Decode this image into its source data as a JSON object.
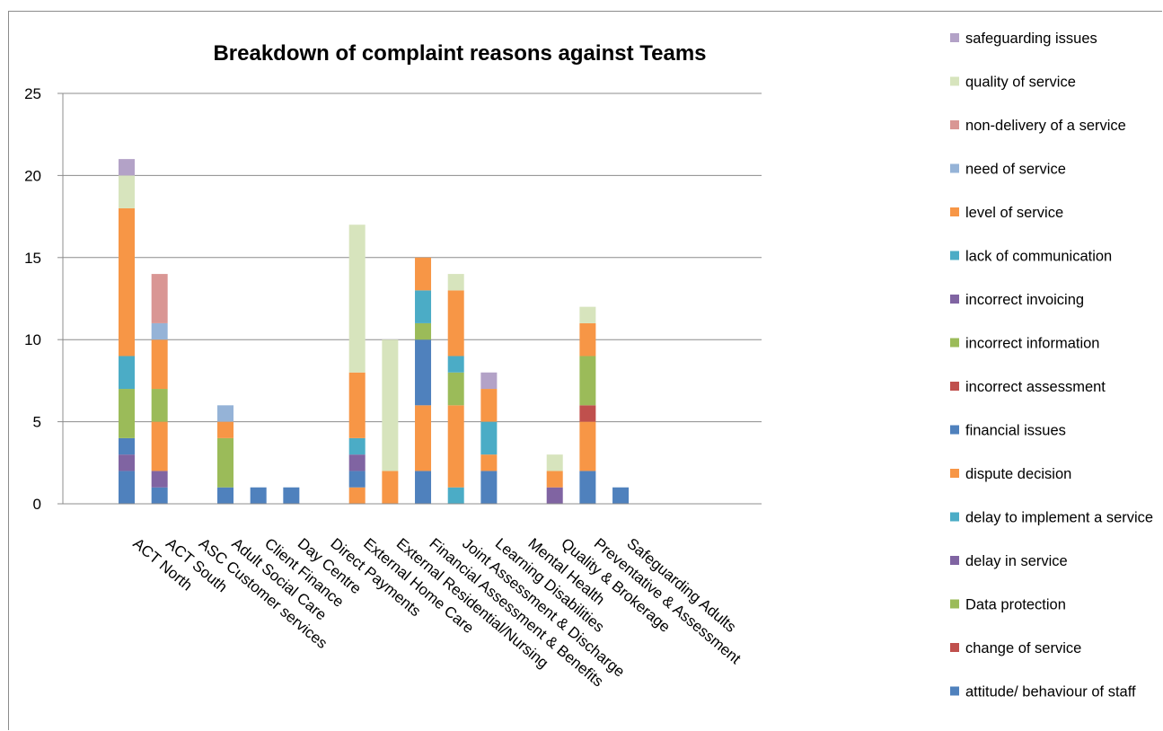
{
  "chart_data": {
    "type": "bar",
    "stacked": true,
    "title": "Breakdown of complaint reasons against Teams",
    "xlabel": "",
    "ylabel": "",
    "ylim": [
      0,
      25
    ],
    "yticks": [
      0,
      5,
      10,
      15,
      20,
      25
    ],
    "grid": true,
    "legend_position": "right",
    "categories": [
      "ACT North",
      "ACT South",
      "ASC Customer services",
      "Adult Social Care",
      "Client Finance",
      "Day Centre",
      "Direct Payments",
      "External Home Care",
      "External Residential/Nursing",
      "Financial Assessment & Benefits",
      "Joint Assessment & Discharge",
      "Learning Disabilities",
      "Mental Health",
      "Quality & Brokerage",
      "Preventative & Assessment",
      "Safeguarding Adults"
    ],
    "series": [
      {
        "name": "attitude/ behaviour of staff",
        "color": "#4f81bd",
        "values": [
          2,
          1,
          0,
          1,
          0,
          1,
          0,
          0,
          0,
          2,
          0,
          2,
          0,
          0,
          2,
          1
        ]
      },
      {
        "name": "change of service",
        "color": "#c0504d",
        "values": [
          0,
          0,
          0,
          0,
          0,
          0,
          0,
          0,
          0,
          0,
          0,
          0,
          0,
          0,
          0,
          0
        ]
      },
      {
        "name": "Data protection",
        "color": "#9bbb59",
        "values": [
          0,
          0,
          0,
          0,
          0,
          0,
          0,
          0,
          0,
          0,
          0,
          0,
          0,
          0,
          0,
          0
        ]
      },
      {
        "name": "delay in service",
        "color": "#8064a2",
        "values": [
          1,
          1,
          0,
          0,
          0,
          0,
          0,
          0,
          0,
          0,
          0,
          0,
          0,
          1,
          0,
          0
        ]
      },
      {
        "name": "delay to implement a service",
        "color": "#4bacc6",
        "values": [
          0,
          0,
          0,
          0,
          0,
          0,
          0,
          0,
          0,
          0,
          1,
          0,
          0,
          0,
          0,
          0
        ]
      },
      {
        "name": "dispute decision",
        "color": "#f79646",
        "values": [
          0,
          3,
          0,
          0,
          0,
          0,
          0,
          1,
          0,
          4,
          5,
          1,
          0,
          0,
          3,
          0
        ]
      },
      {
        "name": "financial issues",
        "color": "#4f81bd",
        "values": [
          1,
          0,
          0,
          0,
          1,
          0,
          0,
          1,
          0,
          4,
          0,
          0,
          0,
          0,
          0,
          0
        ]
      },
      {
        "name": "incorrect assessment",
        "color": "#c0504d",
        "values": [
          0,
          0,
          0,
          0,
          0,
          0,
          0,
          0,
          0,
          0,
          0,
          0,
          0,
          0,
          1,
          0
        ]
      },
      {
        "name": "incorrect information",
        "color": "#9bbb59",
        "values": [
          3,
          2,
          0,
          3,
          0,
          0,
          0,
          0,
          0,
          1,
          2,
          0,
          0,
          0,
          3,
          0
        ]
      },
      {
        "name": "incorrect invoicing",
        "color": "#8064a2",
        "values": [
          0,
          0,
          0,
          0,
          0,
          0,
          0,
          1,
          0,
          0,
          0,
          0,
          0,
          0,
          0,
          0
        ]
      },
      {
        "name": "lack of communication",
        "color": "#4bacc6",
        "values": [
          2,
          0,
          0,
          0,
          0,
          0,
          0,
          1,
          0,
          2,
          1,
          2,
          0,
          0,
          0,
          0
        ]
      },
      {
        "name": "level of service",
        "color": "#f79646",
        "values": [
          9,
          3,
          0,
          1,
          0,
          0,
          0,
          4,
          2,
          2,
          4,
          2,
          0,
          1,
          2,
          0
        ]
      },
      {
        "name": "need of service",
        "color": "#95b3d7",
        "values": [
          0,
          1,
          0,
          1,
          0,
          0,
          0,
          0,
          0,
          0,
          0,
          0,
          0,
          0,
          0,
          0
        ]
      },
      {
        "name": "non-delivery of a service",
        "color": "#d99694",
        "values": [
          0,
          3,
          0,
          0,
          0,
          0,
          0,
          0,
          0,
          0,
          0,
          0,
          0,
          0,
          0,
          0
        ]
      },
      {
        "name": "quality of service",
        "color": "#d7e4bd",
        "values": [
          2,
          0,
          0,
          0,
          0,
          0,
          0,
          9,
          8,
          0,
          1,
          0,
          0,
          1,
          1,
          0
        ]
      },
      {
        "name": "safeguarding issues",
        "color": "#b3a2c7",
        "values": [
          1,
          0,
          0,
          0,
          0,
          0,
          0,
          0,
          0,
          0,
          0,
          1,
          0,
          0,
          0,
          0
        ]
      }
    ]
  }
}
